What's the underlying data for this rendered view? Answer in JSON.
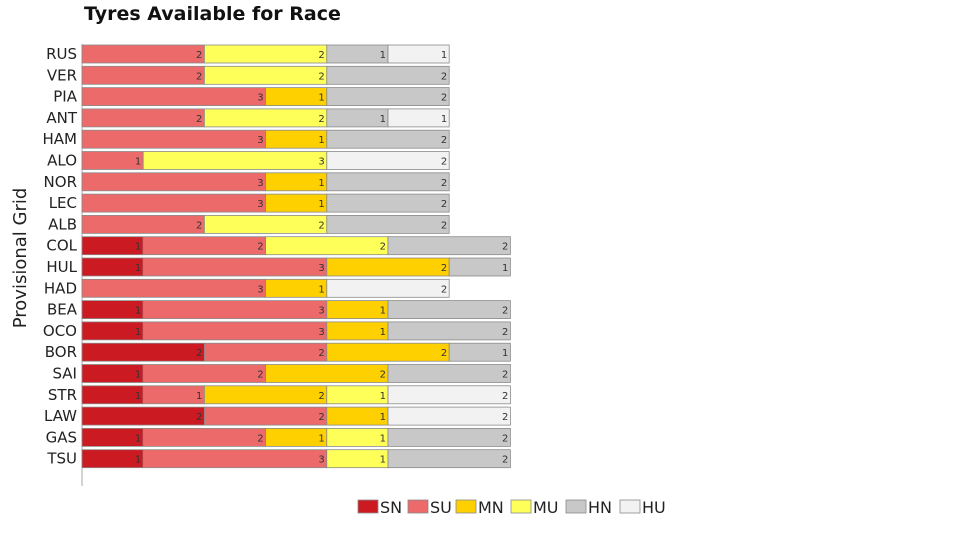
{
  "chart_data": {
    "type": "bar",
    "orientation": "horizontal",
    "stacked": true,
    "title": "Tyres Available for Race",
    "ylabel": "Provisional Grid",
    "xlabel": "",
    "grid": false,
    "legend_position": "bottom",
    "xlim": [
      0,
      14
    ],
    "categories": [
      "RUS",
      "VER",
      "PIA",
      "ANT",
      "HAM",
      "ALO",
      "NOR",
      "LEC",
      "ALB",
      "COL",
      "HUL",
      "HAD",
      "BEA",
      "OCO",
      "BOR",
      "SAI",
      "STR",
      "LAW",
      "GAS",
      "TSU"
    ],
    "series": [
      {
        "name": "SN",
        "color": "#cc1a22",
        "values": [
          0,
          0,
          0,
          0,
          0,
          0,
          0,
          0,
          0,
          1,
          1,
          0,
          1,
          1,
          2,
          1,
          1,
          2,
          1,
          1
        ]
      },
      {
        "name": "SU",
        "color": "#ec6a6a",
        "values": [
          2,
          2,
          3,
          2,
          3,
          1,
          3,
          3,
          2,
          2,
          3,
          3,
          3,
          3,
          2,
          2,
          1,
          2,
          2,
          3
        ]
      },
      {
        "name": "MN",
        "color": "#ffd000",
        "values": [
          0,
          0,
          1,
          0,
          1,
          0,
          1,
          1,
          0,
          0,
          2,
          1,
          1,
          1,
          2,
          2,
          2,
          1,
          1,
          0
        ]
      },
      {
        "name": "MU",
        "color": "#ffff5a",
        "values": [
          2,
          2,
          0,
          2,
          0,
          3,
          0,
          0,
          2,
          2,
          0,
          0,
          0,
          0,
          0,
          0,
          1,
          0,
          1,
          1
        ]
      },
      {
        "name": "HN",
        "color": "#c8c8c8",
        "values": [
          1,
          2,
          2,
          1,
          2,
          0,
          2,
          2,
          2,
          2,
          1,
          0,
          2,
          2,
          1,
          2,
          0,
          0,
          2,
          2
        ]
      },
      {
        "name": "HU",
        "color": "#f2f2f2",
        "values": [
          1,
          0,
          0,
          1,
          0,
          2,
          0,
          0,
          0,
          0,
          0,
          2,
          0,
          0,
          0,
          0,
          2,
          2,
          0,
          0
        ]
      }
    ]
  }
}
